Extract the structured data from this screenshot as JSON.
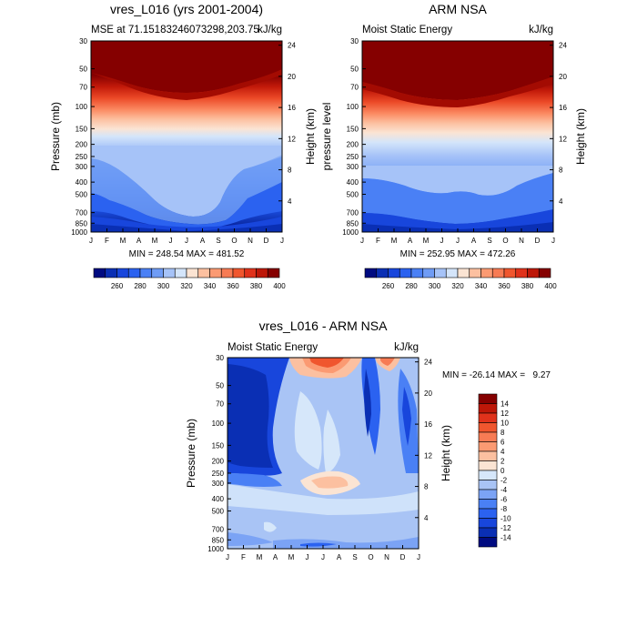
{
  "chart_data": [
    {
      "type": "contour",
      "title": "vres_L016 (yrs 2001-2004)",
      "subtitle_left": "MSE at 71.15183246073298,203.75",
      "subtitle_right": "kJ/kg",
      "ylabel": "Pressure (mb)",
      "ylabel_right": "Height (km)",
      "x_ticks": [
        "J",
        "F",
        "M",
        "A",
        "M",
        "J",
        "J",
        "A",
        "S",
        "O",
        "N",
        "D",
        "J"
      ],
      "pressure_ticks": [
        "30",
        "50",
        "70",
        "100",
        "150",
        "200",
        "250",
        "300",
        "400",
        "500",
        "700",
        "850",
        "1000"
      ],
      "height_ticks": [
        "24",
        "20",
        "16",
        "12",
        "8",
        "4"
      ],
      "stats": "MIN = 248.54 MAX = 481.52",
      "colorbar_labels": [
        "260",
        "280",
        "300",
        "320",
        "340",
        "360",
        "380",
        "400"
      ]
    },
    {
      "type": "contour",
      "title": "ARM NSA",
      "subtitle_left": "Moist Static Energy",
      "subtitle_right": "kJ/kg",
      "ylabel": "pressure level",
      "ylabel_right": "Height (km)",
      "x_ticks": [
        "J",
        "F",
        "M",
        "A",
        "M",
        "J",
        "J",
        "A",
        "S",
        "O",
        "N",
        "D",
        "J"
      ],
      "pressure_ticks": [
        "30",
        "50",
        "70",
        "100",
        "150",
        "200",
        "250",
        "300",
        "400",
        "500",
        "700",
        "850",
        "1000"
      ],
      "height_ticks": [
        "24",
        "20",
        "16",
        "12",
        "8",
        "4"
      ],
      "stats": "MIN = 252.95 MAX = 472.26",
      "colorbar_labels": [
        "260",
        "280",
        "300",
        "320",
        "340",
        "360",
        "380",
        "400"
      ]
    },
    {
      "type": "contour",
      "title": "vres_L016 - ARM NSA",
      "subtitle_left": "Moist Static Energy",
      "subtitle_right": "kJ/kg",
      "ylabel": "Pressure (mb)",
      "ylabel_right": "Height (km)",
      "x_ticks": [
        "J",
        "F",
        "M",
        "A",
        "M",
        "J",
        "J",
        "A",
        "S",
        "O",
        "N",
        "D",
        "J"
      ],
      "pressure_ticks": [
        "30",
        "50",
        "70",
        "100",
        "150",
        "200",
        "250",
        "300",
        "400",
        "500",
        "700",
        "850",
        "1000"
      ],
      "height_ticks": [
        "24",
        "20",
        "16",
        "12",
        "8",
        "4"
      ],
      "stats": "MIN = -26.14 MAX =   9.27",
      "colorbar_labels": [
        "14",
        "12",
        "10",
        "8",
        "6",
        "4",
        "2",
        "0",
        "-2",
        "-4",
        "-6",
        "-8",
        "-10",
        "-12",
        "-14"
      ]
    }
  ],
  "colors": {
    "mse_palette": [
      "#000b80",
      "#0a2fb4",
      "#1846dc",
      "#2b62f0",
      "#4a80f5",
      "#6f9cf5",
      "#a6c3f8",
      "#d4e5fa",
      "#fbe4d3",
      "#fcc0a0",
      "#fb9a72",
      "#f77b54",
      "#f0562e",
      "#e0321b",
      "#bd1708",
      "#850000"
    ],
    "diff_palette": [
      "#000b80",
      "#0a2fb4",
      "#1846dc",
      "#2b62f0",
      "#4a80f5",
      "#7ba3f5",
      "#a9c4f5",
      "#d6e7fa",
      "#fbe4d3",
      "#fcc0a0",
      "#fb9a72",
      "#f77b54",
      "#f0562e",
      "#e0321b",
      "#bd1708",
      "#850000"
    ]
  }
}
